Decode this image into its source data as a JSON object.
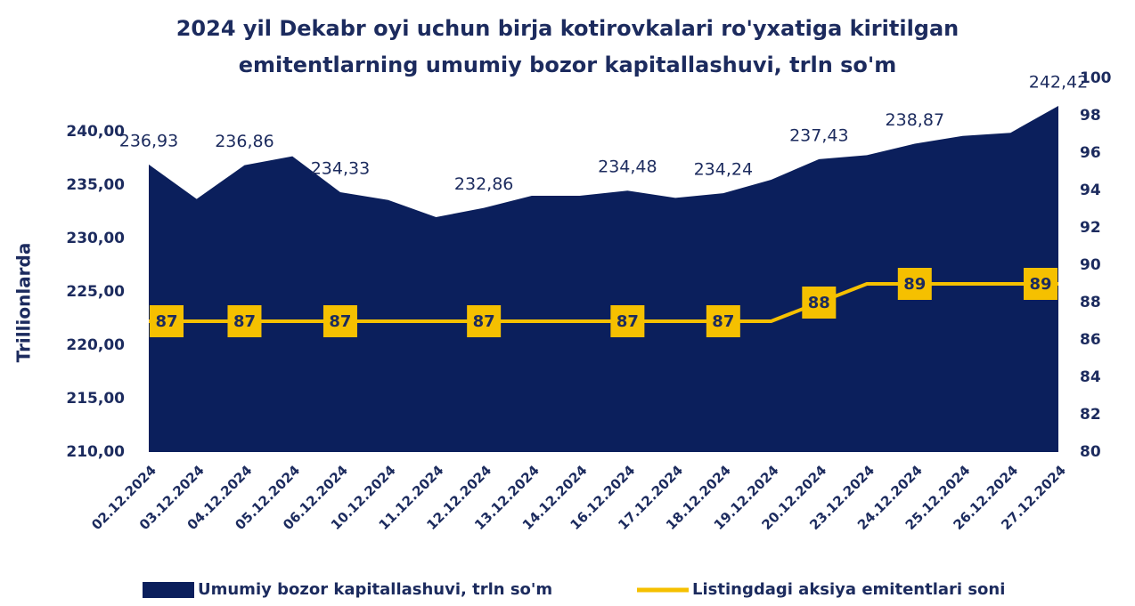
{
  "chart_data": {
    "type": "area-line",
    "title": "2024 yil Dekabr oyi uchun birja kotirovkalari ro'yxatiga kiritilgan emitentlarning umumiy bozor kapitallashuvi, trln so'm",
    "ylabel": "Trillionlarda",
    "categories": [
      "02.12.2024",
      "03.12.2024",
      "04.12.2024",
      "05.12.2024",
      "06.12.2024",
      "10.12.2024",
      "11.12.2024",
      "12.12.2024",
      "13.12.2024",
      "14.12.2024",
      "16.12.2024",
      "17.12.2024",
      "18.12.2024",
      "19.12.2024",
      "20.12.2024",
      "23.12.2024",
      "24.12.2024",
      "25.12.2024",
      "26.12.2024",
      "27.12.2024"
    ],
    "series": [
      {
        "name": "Umumiy bozor kapitallashuvi, trln so'm",
        "type": "area",
        "color": "#0b1f5c",
        "values": [
          236.93,
          233.7,
          236.86,
          237.7,
          234.33,
          233.6,
          232.0,
          232.86,
          234.0,
          234.0,
          234.48,
          233.8,
          234.24,
          235.5,
          237.43,
          237.8,
          238.87,
          239.6,
          239.9,
          242.42
        ],
        "value_labels": [
          "236,93",
          null,
          "236,86",
          null,
          "234,33",
          null,
          null,
          "232,86",
          null,
          null,
          "234,48",
          null,
          "234,24",
          null,
          "237,43",
          null,
          "238,87",
          null,
          null,
          "242,42"
        ]
      },
      {
        "name": "Listingdagi aksiya emitentlari soni",
        "type": "line",
        "axis": "y2",
        "color": "#f5c000",
        "values": [
          87,
          87,
          87,
          87,
          87,
          87,
          87,
          87,
          87,
          87,
          87,
          87,
          87,
          87,
          88,
          89,
          89,
          89,
          89,
          89
        ],
        "value_labels": [
          "87",
          null,
          "87",
          null,
          "87",
          null,
          null,
          "87",
          null,
          null,
          "87",
          null,
          "87",
          null,
          "88",
          null,
          "89",
          null,
          null,
          "89"
        ]
      }
    ],
    "ylim": [
      210,
      245
    ],
    "yticks": [
      {
        "value": 210,
        "label": "210,00"
      },
      {
        "value": 215,
        "label": "215,00"
      },
      {
        "value": 220,
        "label": "220,00"
      },
      {
        "value": 225,
        "label": "225,00"
      },
      {
        "value": 230,
        "label": "230,00"
      },
      {
        "value": 235,
        "label": "235,00"
      },
      {
        "value": 240,
        "label": "240,00"
      }
    ],
    "y2lim": [
      80,
      100
    ],
    "y2ticks": [
      80,
      82,
      84,
      86,
      88,
      90,
      92,
      94,
      96,
      98,
      100
    ],
    "legend": "bottom"
  }
}
